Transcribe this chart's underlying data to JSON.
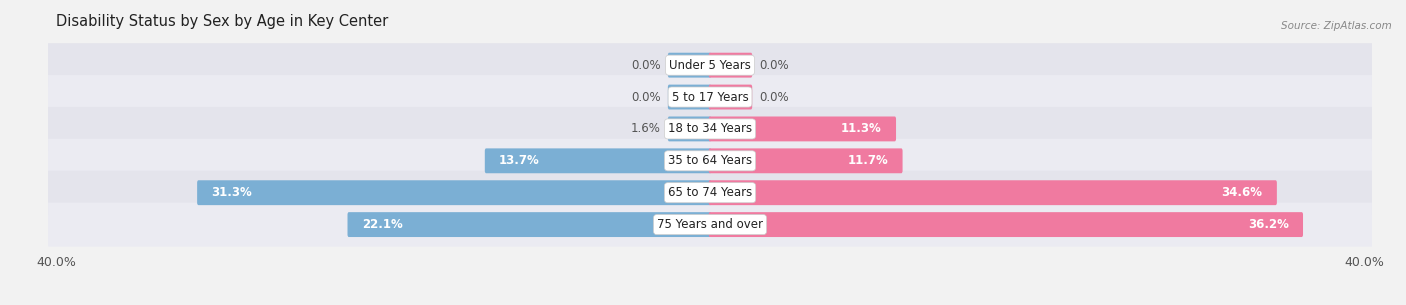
{
  "title": "Disability Status by Sex by Age in Key Center",
  "source": "Source: ZipAtlas.com",
  "categories": [
    "Under 5 Years",
    "5 to 17 Years",
    "18 to 34 Years",
    "35 to 64 Years",
    "65 to 74 Years",
    "75 Years and over"
  ],
  "male_values": [
    0.0,
    0.0,
    1.6,
    13.7,
    31.3,
    22.1
  ],
  "female_values": [
    0.0,
    0.0,
    11.3,
    11.7,
    34.6,
    36.2
  ],
  "male_color": "#7bafd4",
  "female_color": "#f07aa0",
  "bg_color": "#f2f2f2",
  "row_bg_color": "#e4e4ec",
  "row_bg_light": "#ebebf2",
  "xlim": 40.0,
  "bar_height": 0.62,
  "min_bar_width": 2.5,
  "title_fontsize": 10.5,
  "label_fontsize": 8.5,
  "axis_label_fontsize": 9,
  "category_fontsize": 8.5,
  "inside_label_threshold": 6.0
}
